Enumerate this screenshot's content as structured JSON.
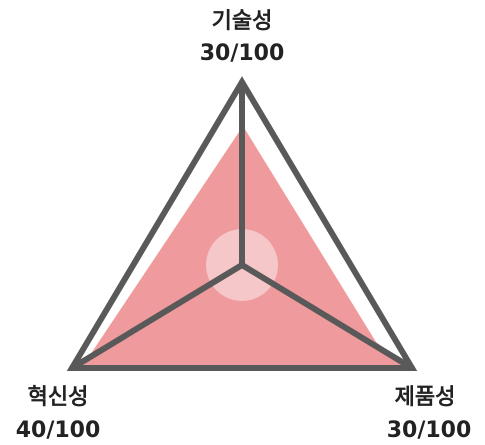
{
  "chart_data": {
    "type": "radar",
    "title": "",
    "max": 100,
    "axes": [
      {
        "name": "기술성",
        "label_value": "30/100",
        "value": 30
      },
      {
        "name": "제품성",
        "label_value": "30/100",
        "value": 30
      },
      {
        "name": "혁신성",
        "label_value": "40/100",
        "value": 40
      }
    ],
    "grid": false,
    "legend": "none",
    "colors": {
      "frame": "#595959",
      "fill": "#ef9a9c",
      "center_glow": "#ffffff"
    }
  }
}
